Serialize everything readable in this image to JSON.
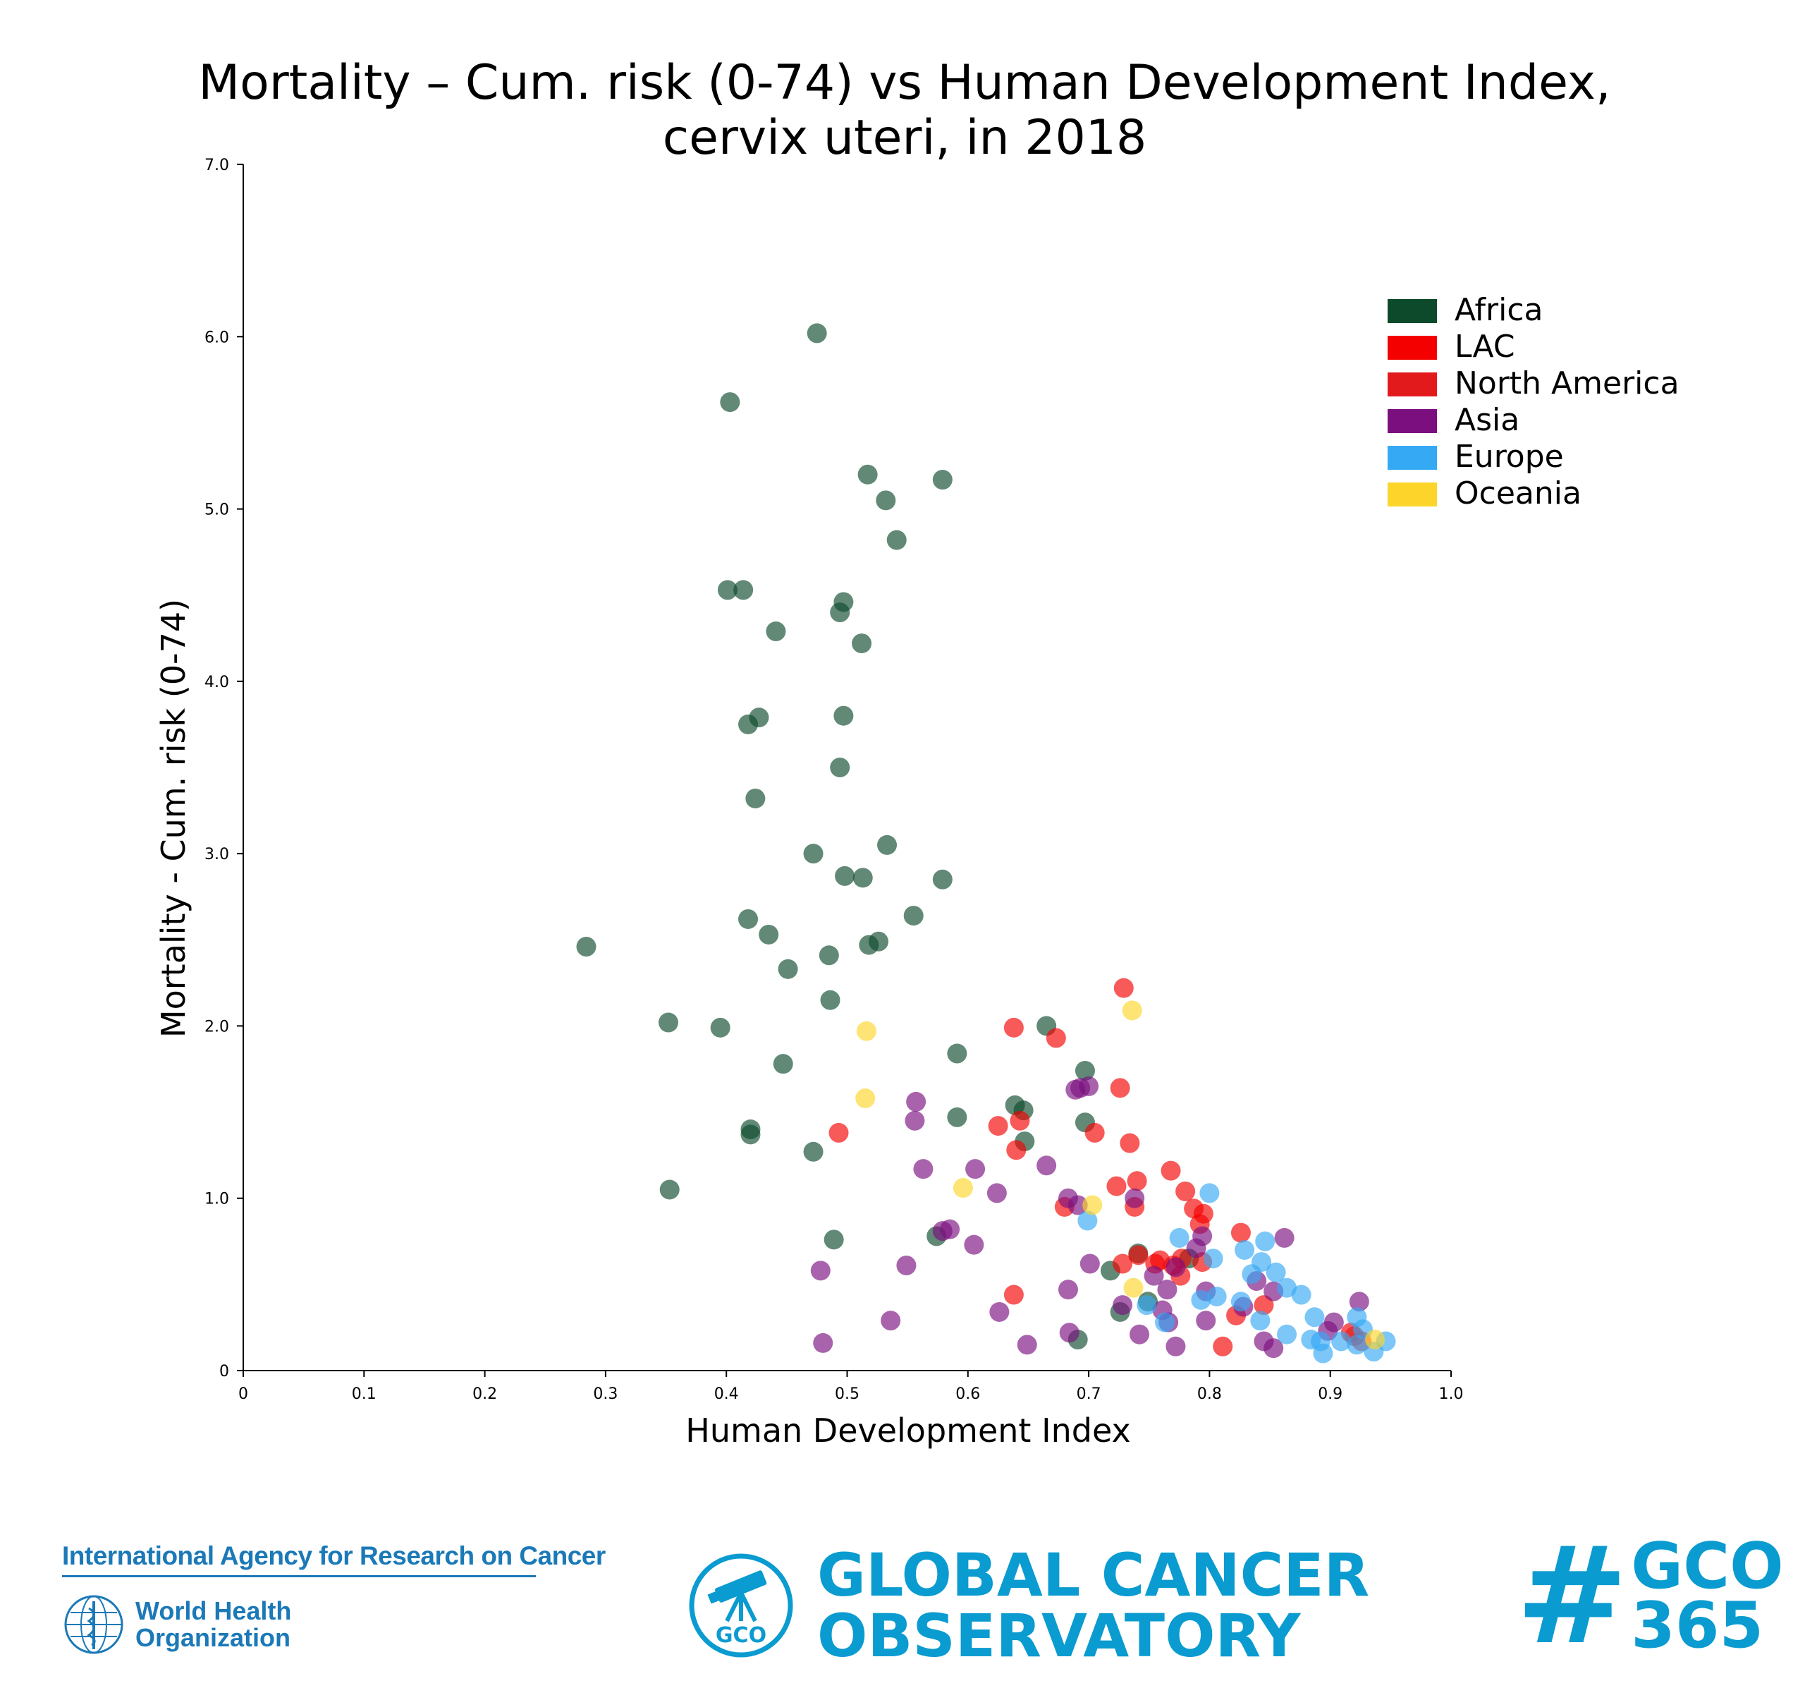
{
  "chart_data": {
    "type": "scatter",
    "title": [
      "Mortality – Cum. risk (0-74) vs Human Development Index,",
      "cervix uteri, in 2018"
    ],
    "xlabel": "Human Development Index",
    "ylabel": "Mortality - Cum. risk (0-74)",
    "xlim": [
      0,
      1.0
    ],
    "ylim": [
      0,
      7.0
    ],
    "xticks": [
      {
        "v": 0,
        "label": "0"
      },
      {
        "v": 0.1,
        "label": "0.1"
      },
      {
        "v": 0.2,
        "label": "0.2"
      },
      {
        "v": 0.3,
        "label": "0.3"
      },
      {
        "v": 0.4,
        "label": "0.4"
      },
      {
        "v": 0.5,
        "label": "0.5"
      },
      {
        "v": 0.6,
        "label": "0.6"
      },
      {
        "v": 0.7,
        "label": "0.7"
      },
      {
        "v": 0.8,
        "label": "0.8"
      },
      {
        "v": 0.9,
        "label": "0.9"
      },
      {
        "v": 1.0,
        "label": "1.0"
      }
    ],
    "yticks": [
      {
        "v": 0,
        "label": "0"
      },
      {
        "v": 1.0,
        "label": "1.0"
      },
      {
        "v": 2.0,
        "label": "2.0"
      },
      {
        "v": 3.0,
        "label": "3.0"
      },
      {
        "v": 4.0,
        "label": "4.0"
      },
      {
        "v": 5.0,
        "label": "5.0"
      },
      {
        "v": 6.0,
        "label": "6.0"
      },
      {
        "v": 7.0,
        "label": "7.0"
      }
    ],
    "grid": false,
    "legend_position": "top-right",
    "series": [
      {
        "name": "Africa",
        "color": "#0d4a2c",
        "points": [
          [
            0.475,
            6.02
          ],
          [
            0.403,
            5.62
          ],
          [
            0.517,
            5.2
          ],
          [
            0.579,
            5.17
          ],
          [
            0.532,
            5.05
          ],
          [
            0.541,
            4.82
          ],
          [
            0.401,
            4.53
          ],
          [
            0.414,
            4.53
          ],
          [
            0.497,
            4.46
          ],
          [
            0.494,
            4.4
          ],
          [
            0.441,
            4.29
          ],
          [
            0.512,
            4.22
          ],
          [
            0.427,
            3.79
          ],
          [
            0.418,
            3.75
          ],
          [
            0.497,
            3.8
          ],
          [
            0.494,
            3.5
          ],
          [
            0.424,
            3.32
          ],
          [
            0.533,
            3.05
          ],
          [
            0.472,
            3.0
          ],
          [
            0.498,
            2.87
          ],
          [
            0.513,
            2.86
          ],
          [
            0.579,
            2.85
          ],
          [
            0.555,
            2.64
          ],
          [
            0.418,
            2.62
          ],
          [
            0.435,
            2.53
          ],
          [
            0.526,
            2.49
          ],
          [
            0.518,
            2.47
          ],
          [
            0.284,
            2.46
          ],
          [
            0.485,
            2.41
          ],
          [
            0.451,
            2.33
          ],
          [
            0.486,
            2.15
          ],
          [
            0.352,
            2.02
          ],
          [
            0.395,
            1.99
          ],
          [
            0.665,
            2.0
          ],
          [
            0.447,
            1.78
          ],
          [
            0.591,
            1.84
          ],
          [
            0.697,
            1.74
          ],
          [
            0.639,
            1.54
          ],
          [
            0.646,
            1.51
          ],
          [
            0.591,
            1.47
          ],
          [
            0.697,
            1.44
          ],
          [
            0.42,
            1.4
          ],
          [
            0.42,
            1.37
          ],
          [
            0.647,
            1.33
          ],
          [
            0.472,
            1.27
          ],
          [
            0.353,
            1.05
          ],
          [
            0.489,
            0.76
          ],
          [
            0.574,
            0.78
          ],
          [
            0.741,
            0.68
          ],
          [
            0.783,
            0.65
          ],
          [
            0.718,
            0.58
          ],
          [
            0.726,
            0.34
          ],
          [
            0.691,
            0.18
          ],
          [
            0.749,
            0.4
          ]
        ]
      },
      {
        "name": "LAC",
        "color": "#f40000",
        "points": [
          [
            0.729,
            2.22
          ],
          [
            0.638,
            1.99
          ],
          [
            0.673,
            1.93
          ],
          [
            0.726,
            1.64
          ],
          [
            0.643,
            1.45
          ],
          [
            0.625,
            1.42
          ],
          [
            0.705,
            1.38
          ],
          [
            0.493,
            1.38
          ],
          [
            0.64,
            1.28
          ],
          [
            0.734,
            1.32
          ],
          [
            0.768,
            1.16
          ],
          [
            0.74,
            1.1
          ],
          [
            0.723,
            1.07
          ],
          [
            0.78,
            1.04
          ],
          [
            0.738,
            0.95
          ],
          [
            0.68,
            0.95
          ],
          [
            0.787,
            0.94
          ],
          [
            0.795,
            0.91
          ],
          [
            0.792,
            0.85
          ],
          [
            0.826,
            0.8
          ],
          [
            0.777,
            0.65
          ],
          [
            0.759,
            0.64
          ],
          [
            0.794,
            0.63
          ],
          [
            0.728,
            0.62
          ],
          [
            0.755,
            0.62
          ],
          [
            0.77,
            0.61
          ],
          [
            0.776,
            0.55
          ],
          [
            0.845,
            0.38
          ],
          [
            0.638,
            0.44
          ],
          [
            0.822,
            0.32
          ],
          [
            0.811,
            0.14
          ],
          [
            0.741,
            0.67
          ],
          [
            0.917,
            0.22
          ]
        ]
      },
      {
        "name": "North America",
        "color": "#e31a1c",
        "points": [
          [
            0.92,
            0.2
          ],
          [
            0.926,
            0.17
          ]
        ]
      },
      {
        "name": "Asia",
        "color": "#7b0f80",
        "points": [
          [
            0.557,
            1.56
          ],
          [
            0.693,
            1.64
          ],
          [
            0.689,
            1.63
          ],
          [
            0.7,
            1.65
          ],
          [
            0.556,
            1.45
          ],
          [
            0.665,
            1.19
          ],
          [
            0.606,
            1.17
          ],
          [
            0.563,
            1.17
          ],
          [
            0.624,
            1.03
          ],
          [
            0.738,
            1.0
          ],
          [
            0.683,
            1.0
          ],
          [
            0.691,
            0.96
          ],
          [
            0.862,
            0.77
          ],
          [
            0.585,
            0.82
          ],
          [
            0.579,
            0.81
          ],
          [
            0.605,
            0.73
          ],
          [
            0.794,
            0.78
          ],
          [
            0.789,
            0.71
          ],
          [
            0.772,
            0.6
          ],
          [
            0.701,
            0.62
          ],
          [
            0.754,
            0.55
          ],
          [
            0.549,
            0.61
          ],
          [
            0.478,
            0.58
          ],
          [
            0.839,
            0.52
          ],
          [
            0.853,
            0.46
          ],
          [
            0.765,
            0.47
          ],
          [
            0.797,
            0.46
          ],
          [
            0.683,
            0.47
          ],
          [
            0.924,
            0.4
          ],
          [
            0.828,
            0.37
          ],
          [
            0.761,
            0.35
          ],
          [
            0.728,
            0.38
          ],
          [
            0.626,
            0.34
          ],
          [
            0.903,
            0.28
          ],
          [
            0.797,
            0.29
          ],
          [
            0.766,
            0.28
          ],
          [
            0.536,
            0.29
          ],
          [
            0.898,
            0.23
          ],
          [
            0.684,
            0.22
          ],
          [
            0.742,
            0.21
          ],
          [
            0.845,
            0.17
          ],
          [
            0.853,
            0.13
          ],
          [
            0.772,
            0.14
          ],
          [
            0.649,
            0.15
          ],
          [
            0.48,
            0.16
          ]
        ]
      },
      {
        "name": "Europe",
        "color": "#36a9f4",
        "points": [
          [
            0.8,
            1.03
          ],
          [
            0.699,
            0.87
          ],
          [
            0.846,
            0.75
          ],
          [
            0.775,
            0.77
          ],
          [
            0.829,
            0.7
          ],
          [
            0.803,
            0.65
          ],
          [
            0.843,
            0.63
          ],
          [
            0.855,
            0.57
          ],
          [
            0.835,
            0.56
          ],
          [
            0.864,
            0.48
          ],
          [
            0.876,
            0.44
          ],
          [
            0.806,
            0.43
          ],
          [
            0.793,
            0.41
          ],
          [
            0.826,
            0.4
          ],
          [
            0.748,
            0.38
          ],
          [
            0.842,
            0.29
          ],
          [
            0.887,
            0.31
          ],
          [
            0.922,
            0.31
          ],
          [
            0.763,
            0.28
          ],
          [
            0.864,
            0.21
          ],
          [
            0.927,
            0.24
          ],
          [
            0.884,
            0.18
          ],
          [
            0.892,
            0.17
          ],
          [
            0.909,
            0.17
          ],
          [
            0.922,
            0.15
          ],
          [
            0.946,
            0.17
          ],
          [
            0.936,
            0.11
          ],
          [
            0.894,
            0.1
          ]
        ]
      },
      {
        "name": "Oceania",
        "color": "#fdd52a",
        "points": [
          [
            0.736,
            2.09
          ],
          [
            0.516,
            1.97
          ],
          [
            0.515,
            1.58
          ],
          [
            0.596,
            1.06
          ],
          [
            0.703,
            0.96
          ],
          [
            0.737,
            0.48
          ],
          [
            0.937,
            0.18
          ]
        ]
      }
    ]
  },
  "footer": {
    "iarc": "International Agency for Research on Cancer",
    "who_line1": "World Health",
    "who_line2": "Organization",
    "gco_emblem_label": "GCO",
    "gco_line1": "GLOBAL CANCER",
    "gco_line2": "OBSERVATORY",
    "hashtag_symbol": "#",
    "hashtag_line1": "GCO",
    "hashtag_line2": "365"
  }
}
